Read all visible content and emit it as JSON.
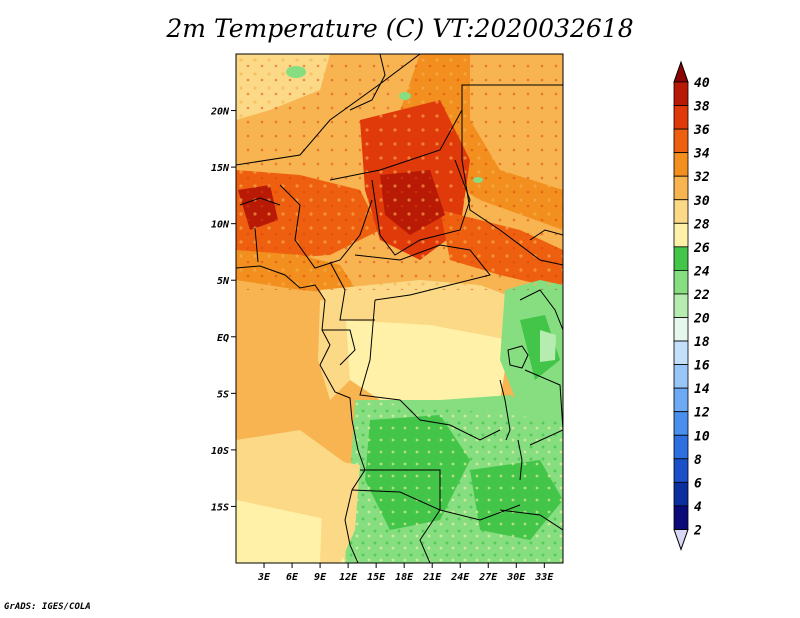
{
  "title": "2m Temperature (C) VT:2020032618",
  "credit": "GrADS: IGES/COLA",
  "map": {
    "lon_range": [
      0,
      35
    ],
    "lat_range": [
      -20,
      25
    ],
    "lon_ticks": [
      "3E",
      "6E",
      "9E",
      "12E",
      "15E",
      "18E",
      "21E",
      "24E",
      "27E",
      "30E",
      "33E"
    ],
    "lat_ticks": [
      "20N",
      "15N",
      "10N",
      "5N",
      "EQ",
      "5S",
      "10S",
      "15S"
    ]
  },
  "colorbar": {
    "labels": [
      "2",
      "4",
      "6",
      "8",
      "10",
      "12",
      "14",
      "16",
      "18",
      "20",
      "22",
      "24",
      "26",
      "28",
      "30",
      "32",
      "34",
      "36",
      "38",
      "40"
    ],
    "colors": [
      "#0a0a78",
      "#0c2fa0",
      "#1b50c8",
      "#2d6fe0",
      "#4a8fee",
      "#6eaaf3",
      "#98c6f7",
      "#c3e0fb",
      "#e6f8ee",
      "#b6ecb0",
      "#86de80",
      "#42c548",
      "#fff2a8",
      "#fbd987",
      "#f7b451",
      "#f28f1e",
      "#ee6010",
      "#e03a0b",
      "#b81a05",
      "#8c0303"
    ]
  },
  "regions": [
    {
      "name": "atlantic-north",
      "color": "#f7b451"
    },
    {
      "name": "atlantic-south-cool",
      "color": "#fbd987"
    },
    {
      "name": "sahara-west",
      "color": "#f7b451"
    },
    {
      "name": "sahara-east",
      "color": "#f28f1e"
    },
    {
      "name": "sahel-hot-west",
      "color": "#ee6010"
    },
    {
      "name": "sahel-hot-center",
      "color": "#e03a0b"
    },
    {
      "name": "sahel-hot-east",
      "color": "#ee6010"
    },
    {
      "name": "coastal-guinea",
      "color": "#f28f1e"
    },
    {
      "name": "congo-basin-north",
      "color": "#fbd987"
    },
    {
      "name": "congo-basin-center",
      "color": "#fff2a8"
    },
    {
      "name": "southern-green",
      "color": "#86de80"
    },
    {
      "name": "southern-dark-green",
      "color": "#42c548"
    },
    {
      "name": "rift-green",
      "color": "#86de80"
    }
  ]
}
